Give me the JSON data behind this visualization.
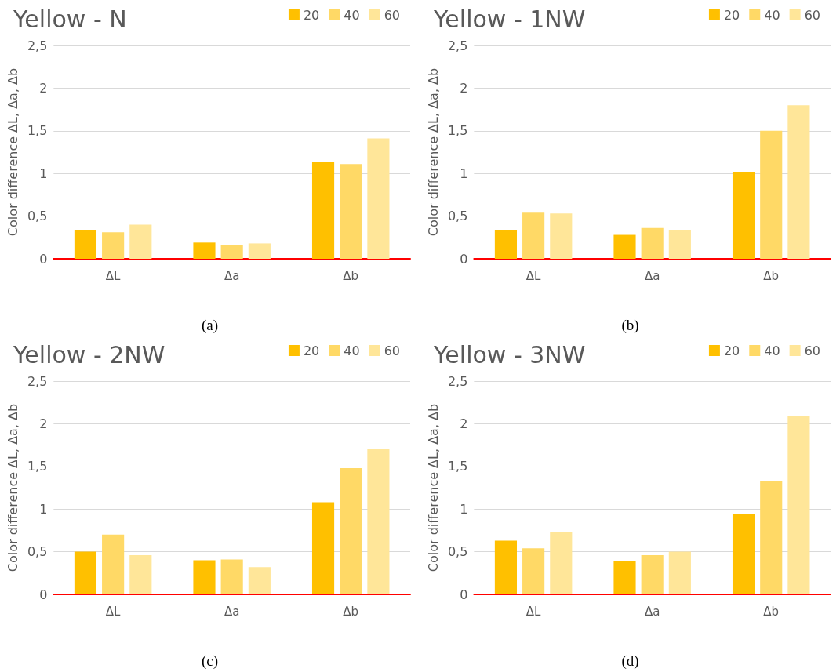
{
  "chart_data": [
    {
      "type": "bar",
      "title": "Yellow - N",
      "ylabel": "Color difference ΔL, Δa, Δb",
      "categories": [
        "ΔL",
        "Δa",
        "Δb"
      ],
      "series": [
        {
          "name": "20",
          "color": "#ffc000",
          "values": [
            0.34,
            0.19,
            1.14
          ]
        },
        {
          "name": "40",
          "color": "#ffd966",
          "values": [
            0.31,
            0.16,
            1.11
          ]
        },
        {
          "name": "60",
          "color": "#ffe699",
          "values": [
            0.4,
            0.18,
            1.41
          ]
        }
      ],
      "ylim": [
        0,
        2.5
      ],
      "yticks": [
        0,
        {
          "value": 0.5,
          "label": "0,5"
        },
        1,
        {
          "value": 1.5,
          "label": "1,5"
        },
        2,
        {
          "value": 2.5,
          "label": "2,5"
        }
      ],
      "grid": "y",
      "legend": "top right",
      "annotations": [
        "(a)"
      ]
    },
    {
      "type": "bar",
      "title": "Yellow - 1NW",
      "ylabel": "Color difference ΔL, Δa, Δb",
      "categories": [
        "ΔL",
        "Δa",
        "Δb"
      ],
      "series": [
        {
          "name": "20",
          "color": "#ffc000",
          "values": [
            0.34,
            0.28,
            1.02
          ]
        },
        {
          "name": "40",
          "color": "#ffd966",
          "values": [
            0.54,
            0.36,
            1.5
          ]
        },
        {
          "name": "60",
          "color": "#ffe699",
          "values": [
            0.53,
            0.34,
            1.8
          ]
        }
      ],
      "ylim": [
        0,
        2.5
      ],
      "yticks": [
        0,
        {
          "value": 0.5,
          "label": "0,5"
        },
        1,
        {
          "value": 1.5,
          "label": "1,5"
        },
        2,
        {
          "value": 2.5,
          "label": "2,5"
        }
      ],
      "grid": "y",
      "legend": "top right",
      "annotations": [
        "(b)"
      ]
    },
    {
      "type": "bar",
      "title": "Yellow - 2NW",
      "ylabel": "Color difference ΔL, Δa, Δb",
      "categories": [
        "ΔL",
        "Δa",
        "Δb"
      ],
      "series": [
        {
          "name": "20",
          "color": "#ffc000",
          "values": [
            0.5,
            0.4,
            1.08
          ]
        },
        {
          "name": "40",
          "color": "#ffd966",
          "values": [
            0.7,
            0.41,
            1.48
          ]
        },
        {
          "name": "60",
          "color": "#ffe699",
          "values": [
            0.46,
            0.32,
            1.7
          ]
        }
      ],
      "ylim": [
        0,
        2.5
      ],
      "yticks": [
        0,
        {
          "value": 0.5,
          "label": "0,5"
        },
        1,
        {
          "value": 1.5,
          "label": "1,5"
        },
        2,
        {
          "value": 2.5,
          "label": "2,5"
        }
      ],
      "grid": "y",
      "legend": "top right",
      "annotations": [
        "(c)"
      ]
    },
    {
      "type": "bar",
      "title": "Yellow - 3NW",
      "ylabel": "Color difference ΔL, Δa, Δb",
      "categories": [
        "ΔL",
        "Δa",
        "Δb"
      ],
      "series": [
        {
          "name": "20",
          "color": "#ffc000",
          "values": [
            0.63,
            0.39,
            0.94
          ]
        },
        {
          "name": "40",
          "color": "#ffd966",
          "values": [
            0.54,
            0.46,
            1.33
          ]
        },
        {
          "name": "60",
          "color": "#ffe699",
          "values": [
            0.73,
            0.5,
            2.09
          ]
        }
      ],
      "ylim": [
        0,
        2.5
      ],
      "yticks": [
        0,
        {
          "value": 0.5,
          "label": "0,5"
        },
        1,
        {
          "value": 1.5,
          "label": "1,5"
        },
        2,
        {
          "value": 2.5,
          "label": "2,5"
        }
      ],
      "grid": "y",
      "legend": "top right",
      "annotations": [
        "(d)"
      ]
    }
  ]
}
